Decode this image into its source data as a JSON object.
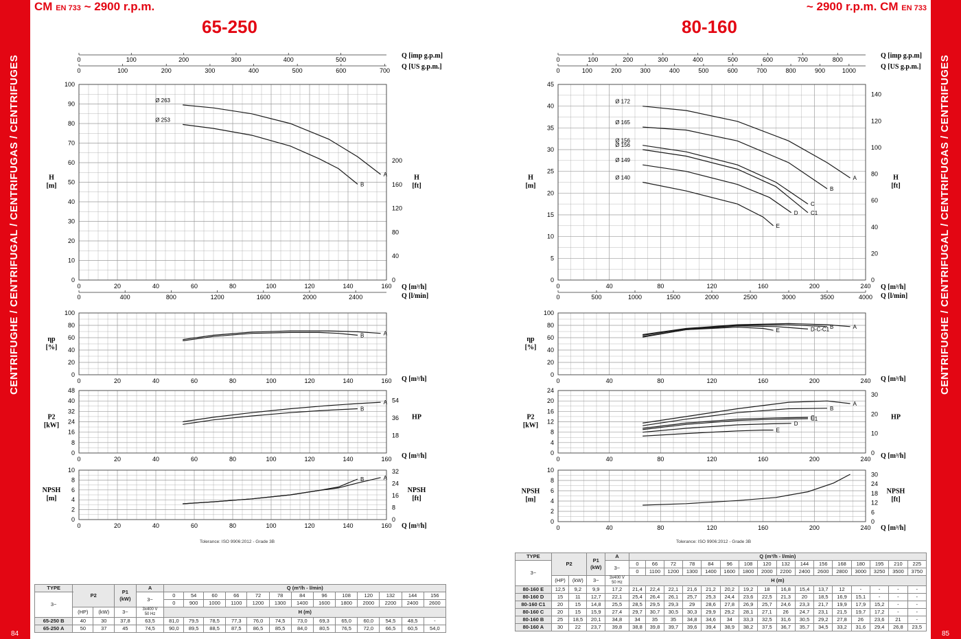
{
  "sidebar": {
    "left_text": "CENTRIFUGHE / CENTRIFUGAL / CENTRIFUGAS / CENTRIFUGES",
    "right_text": "CENTRIFUGHE / CENTRIFUGAL / CENTRIFUGAS / CENTRIFUGES",
    "left_page": "84",
    "right_page": "85"
  },
  "header": {
    "left_prefix": "CM",
    "left_std": "EN 733",
    "left_suffix": "~ 2900 r.p.m.",
    "right_prefix": "~ 2900 r.p.m. CM",
    "right_std": "EN 733"
  },
  "colors": {
    "accent": "#e30613",
    "grid": "#9a9a9a",
    "curve": "#1a1a1a"
  },
  "tolerance": "Tolerance: ISO 9906:2012 - Grade 3B",
  "chart_data": [
    {
      "type": "line",
      "title": "65-250",
      "x_label": "Q [m³/h]",
      "x_alt_label": "Q [l/min]",
      "top_label_1": "Q [imp g.p.m]",
      "top_label_2": "Q [US g.p.m.]",
      "xlim": [
        0,
        160
      ],
      "x_ticks": [
        0,
        20,
        40,
        60,
        80,
        100,
        120,
        140,
        160
      ],
      "x_alt_ticks": [
        0,
        400,
        800,
        1200,
        1600,
        2000,
        2400
      ],
      "x_alt_max": 2666.7,
      "imp_ticks": [
        0,
        100,
        200,
        300,
        400,
        500
      ],
      "imp_max": 587,
      "us_ticks": [
        0,
        100,
        200,
        300,
        400,
        500,
        600,
        700
      ],
      "us_max": 704,
      "head": {
        "ylabel": "H\n[m]",
        "ylim": [
          0,
          100
        ],
        "y_ticks": [
          0,
          10,
          20,
          30,
          40,
          50,
          60,
          70,
          80,
          90,
          100
        ],
        "ft_label": "H\n[ft]",
        "ft_ticks": [
          0,
          40,
          80,
          120,
          160,
          200
        ],
        "ft_max": 328,
        "series": [
          {
            "name": "A",
            "diameter": "Ø 263",
            "x": [
              54,
              70,
              90,
              110,
              130,
              145,
              157
            ],
            "y": [
              89.5,
              88,
              85,
              80,
              72,
              63,
              54
            ]
          },
          {
            "name": "B",
            "diameter": "Ø 253",
            "x": [
              54,
              70,
              90,
              110,
              125,
              135,
              145
            ],
            "y": [
              79.5,
              77.5,
              74,
              68.5,
              62,
              57,
              49
            ]
          }
        ]
      },
      "efficiency": {
        "ylabel": "ηp\n[%]",
        "ylim": [
          0,
          100
        ],
        "y_ticks": [
          0,
          20,
          40,
          60,
          80,
          100
        ],
        "series": [
          {
            "name": "A",
            "x": [
              54,
              70,
              90,
              110,
              130,
              145,
              157
            ],
            "y": [
              57,
              64,
              69,
              71,
              71,
              69.5,
              67
            ]
          },
          {
            "name": "B",
            "x": [
              54,
              70,
              90,
              110,
              125,
              135,
              145
            ],
            "y": [
              55,
              62,
              67,
              68.5,
              68.5,
              67,
              64
            ]
          }
        ]
      },
      "power": {
        "ylabel": "P2\n[kW]",
        "ylim": [
          0,
          48
        ],
        "y_ticks": [
          0,
          8,
          16,
          24,
          32,
          40,
          48
        ],
        "hp_label": "HP",
        "hp_ticks": [
          18,
          36,
          54
        ],
        "hp_max": 64.4,
        "series": [
          {
            "name": "A",
            "x": [
              54,
              70,
              90,
              110,
              130,
              145,
              157
            ],
            "y": [
              24,
              27.5,
              31,
              34,
              36.5,
              38,
              39
            ]
          },
          {
            "name": "B",
            "x": [
              54,
              70,
              90,
              110,
              125,
              135,
              145
            ],
            "y": [
              22,
              25.5,
              28.5,
              31,
              32.5,
              33.3,
              34
            ]
          }
        ]
      },
      "npsh": {
        "ylabel": "NPSH\n[m]",
        "ylim": [
          0,
          10
        ],
        "y_ticks": [
          0,
          2,
          4,
          6,
          8,
          10
        ],
        "ft_label": "NPSH\n[ft]",
        "ft_ticks": [
          0,
          8,
          16,
          24,
          32
        ],
        "ft_max": 32.8,
        "series": [
          {
            "name": "A",
            "x": [
              54,
              70,
              90,
              110,
              125,
              135,
              145,
              157
            ],
            "y": [
              3.2,
              3.6,
              4.2,
              5.0,
              5.9,
              6.4,
              7.4,
              8.5
            ]
          },
          {
            "name": "B",
            "x": [
              54,
              70,
              90,
              110,
              125,
              135,
              145
            ],
            "y": [
              3.2,
              3.6,
              4.2,
              5.0,
              5.9,
              6.6,
              8.2
            ]
          }
        ]
      }
    },
    {
      "type": "line",
      "title": "80-160",
      "x_label": "Q [m³/h]",
      "x_alt_label": "Q [l/min]",
      "top_label_1": "Q [imp g.p.m]",
      "top_label_2": "Q [US g.p.m.]",
      "xlim": [
        0,
        240
      ],
      "x_ticks": [
        0,
        40,
        80,
        120,
        160,
        200,
        240
      ],
      "x_alt_ticks": [
        0,
        500,
        1000,
        1500,
        2000,
        2500,
        3000,
        3500,
        4000
      ],
      "x_alt_max": 4000,
      "imp_ticks": [
        0,
        100,
        200,
        300,
        400,
        500,
        600,
        700,
        800
      ],
      "imp_max": 880,
      "us_ticks": [
        0,
        100,
        200,
        300,
        400,
        500,
        600,
        700,
        800,
        900,
        1000
      ],
      "us_max": 1057,
      "head": {
        "ylabel": "H\n[m]",
        "ylim": [
          0,
          45
        ],
        "y_ticks": [
          0,
          5,
          10,
          15,
          20,
          25,
          30,
          35,
          40,
          45
        ],
        "ft_label": "H\n[ft]",
        "ft_ticks": [
          0,
          20,
          40,
          60,
          80,
          100,
          120,
          140
        ],
        "ft_max": 147.6,
        "series": [
          {
            "name": "A",
            "diameter": "Ø 172",
            "x": [
              66,
              100,
              140,
              180,
              210,
              228
            ],
            "y": [
              40,
              39,
              36.5,
              32,
              27,
              23.5
            ]
          },
          {
            "name": "B",
            "diameter": "Ø 165",
            "x": [
              66,
              100,
              140,
              180,
              210
            ],
            "y": [
              35.2,
              34.5,
              32,
              27,
              21
            ]
          },
          {
            "name": "C",
            "diameter": "Ø 156",
            "x": [
              66,
              100,
              140,
              170,
              195
            ],
            "y": [
              31,
              29.5,
              26.5,
              22.5,
              17.5
            ]
          },
          {
            "name": "C1",
            "diameter": "Ø 156",
            "x": [
              66,
              100,
              140,
              170,
              195
            ],
            "y": [
              30,
              28.5,
              25.5,
              21.5,
              15.5
            ]
          },
          {
            "name": "D",
            "diameter": "Ø 149",
            "x": [
              66,
              100,
              140,
              165,
              182
            ],
            "y": [
              26.5,
              25,
              22,
              19,
              15.5
            ]
          },
          {
            "name": "E",
            "diameter": "Ø 140",
            "x": [
              66,
              100,
              140,
              160,
              168
            ],
            "y": [
              22.5,
              20.5,
              17.5,
              14.5,
              12.5
            ]
          }
        ]
      },
      "efficiency": {
        "ylabel": "ηp\n[%]",
        "ylim": [
          0,
          100
        ],
        "y_ticks": [
          0,
          20,
          40,
          60,
          80,
          100
        ],
        "series": [
          {
            "name": "A",
            "x": [
              66,
              100,
              140,
              180,
              210,
              228
            ],
            "y": [
              65,
              75,
              81,
              83,
              81,
              78
            ]
          },
          {
            "name": "B",
            "x": [
              66,
              100,
              140,
              180,
              210
            ],
            "y": [
              64,
              74,
              80,
              81,
              78
            ]
          },
          {
            "name": "D-C-C1",
            "x": [
              66,
              100,
              140,
              170,
              195
            ],
            "y": [
              62,
              73,
              79,
              78,
              74
            ]
          },
          {
            "name": "E",
            "x": [
              66,
              100,
              140,
              160,
              168
            ],
            "y": [
              61,
              73,
              77,
              75,
              72
            ]
          }
        ]
      },
      "power": {
        "ylabel": "P2\n[kW]",
        "ylim": [
          0,
          24
        ],
        "y_ticks": [
          0,
          4,
          8,
          12,
          16,
          20,
          24
        ],
        "hp_label": "HP",
        "hp_ticks": [
          0,
          10,
          20,
          30
        ],
        "hp_max": 32.2,
        "series": [
          {
            "name": "A",
            "x": [
              66,
              100,
              140,
              180,
              210,
              228
            ],
            "y": [
              11.5,
              14,
              17,
              19.5,
              20,
              19
            ]
          },
          {
            "name": "B",
            "x": [
              66,
              100,
              140,
              180,
              210
            ],
            "y": [
              10.5,
              13,
              15.5,
              17,
              17.2
            ]
          },
          {
            "name": "C",
            "x": [
              66,
              100,
              140,
              170,
              195
            ],
            "y": [
              9.5,
              11.5,
              13,
              13.5,
              13.7
            ]
          },
          {
            "name": "C1",
            "x": [
              66,
              100,
              140,
              170,
              195
            ],
            "y": [
              9,
              11,
              12.5,
              13,
              13.2
            ]
          },
          {
            "name": "D",
            "x": [
              66,
              100,
              140,
              165,
              182
            ],
            "y": [
              8,
              9.5,
              10.8,
              11.2,
              11.4
            ]
          },
          {
            "name": "E",
            "x": [
              66,
              100,
              140,
              160,
              168
            ],
            "y": [
              6.5,
              7.5,
              8.5,
              8.8,
              8.8
            ]
          }
        ]
      },
      "npsh": {
        "ylabel": "NPSH\n[m]",
        "ylim": [
          0,
          10
        ],
        "y_ticks": [
          0,
          2,
          4,
          6,
          8,
          10
        ],
        "ft_label": "NPSH\n[ft]",
        "ft_ticks": [
          0,
          6,
          12,
          18,
          24,
          30
        ],
        "ft_max": 32.8,
        "series": [
          {
            "name": "",
            "x": [
              66,
              100,
              140,
              170,
              195,
              215,
              228
            ],
            "y": [
              3.2,
              3.5,
              4.1,
              4.7,
              5.8,
              7.5,
              9.2
            ]
          }
        ]
      }
    }
  ],
  "tables": {
    "left": {
      "type_label": "TYPE",
      "phase": "3~",
      "p2_label": "P2",
      "p1_label": "P1\n(kW)",
      "a_label": "A",
      "q_label": "Q (m³/h - l/min)",
      "hp_label": "(HP)",
      "kw_label": "(kW)",
      "a_phase": "3~",
      "voltage": "3x400 V\n50 Hz",
      "h_label": "H (m)",
      "q_m3h": [
        "0",
        "54",
        "60",
        "66",
        "72",
        "78",
        "84",
        "96",
        "108",
        "120",
        "132",
        "144",
        "156"
      ],
      "q_lmin": [
        "0",
        "900",
        "1000",
        "1100",
        "1200",
        "1300",
        "1400",
        "1600",
        "1800",
        "2000",
        "2200",
        "2400",
        "2600"
      ],
      "rows": [
        {
          "type": "65-250 B",
          "hp": "40",
          "kw": "30",
          "p1": "37,8",
          "a": "63,5",
          "h": [
            "81,0",
            "79,5",
            "78,5",
            "77,3",
            "76,0",
            "74,5",
            "73,0",
            "69,3",
            "65,0",
            "60,0",
            "54,5",
            "48,5",
            "-"
          ]
        },
        {
          "type": "65-250 A",
          "hp": "50",
          "kw": "37",
          "p1": "45",
          "a": "74,5",
          "h": [
            "90,0",
            "89,5",
            "88,5",
            "87,5",
            "86,5",
            "85,5",
            "84,0",
            "80,5",
            "76,5",
            "72,0",
            "66,5",
            "60,5",
            "54,0"
          ]
        }
      ]
    },
    "right": {
      "type_label": "TYPE",
      "phase": "3~",
      "p2_label": "P2",
      "p1_label": "P1\n(kW)",
      "a_label": "A",
      "q_label": "Q (m³/h - l/min)",
      "hp_label": "(HP)",
      "kw_label": "(kW)",
      "a_phase": "3~",
      "voltage": "3x400 V\n50 Hz",
      "h_label": "H (m)",
      "q_m3h": [
        "0",
        "66",
        "72",
        "78",
        "84",
        "96",
        "108",
        "120",
        "132",
        "144",
        "156",
        "168",
        "180",
        "195",
        "210",
        "225"
      ],
      "q_lmin": [
        "0",
        "1100",
        "1200",
        "1300",
        "1400",
        "1600",
        "1800",
        "2000",
        "2200",
        "2400",
        "2600",
        "2800",
        "3000",
        "3250",
        "3500",
        "3750"
      ],
      "rows": [
        {
          "type": "80-160 E",
          "hp": "12,5",
          "kw": "9,2",
          "p1": "9,9",
          "a": "17,2",
          "h": [
            "21,4",
            "22,4",
            "22,1",
            "21,6",
            "21,2",
            "20,2",
            "19,2",
            "18",
            "16,8",
            "15,4",
            "13,7",
            "12",
            "-",
            "-",
            "-",
            "-"
          ]
        },
        {
          "type": "80-160 D",
          "hp": "15",
          "kw": "11",
          "p1": "12,7",
          "a": "22,1",
          "h": [
            "25,4",
            "26,4",
            "26,1",
            "25,7",
            "25,3",
            "24,4",
            "23,6",
            "22,5",
            "21,3",
            "20",
            "18,5",
            "16,9",
            "15,1",
            "-",
            "-",
            "-"
          ]
        },
        {
          "type": "80-160 C1",
          "hp": "20",
          "kw": "15",
          "p1": "14,8",
          "a": "25,5",
          "h": [
            "28,5",
            "29,5",
            "29,3",
            "29",
            "28,6",
            "27,8",
            "26,9",
            "25,7",
            "24,6",
            "23,3",
            "21,7",
            "19,9",
            "17,9",
            "15,2",
            "-",
            "-"
          ]
        },
        {
          "type": "80-160 C",
          "hp": "20",
          "kw": "15",
          "p1": "15,9",
          "a": "27,4",
          "h": [
            "29,7",
            "30,7",
            "30,5",
            "30,3",
            "29,9",
            "29,2",
            "28,1",
            "27,1",
            "26",
            "24,7",
            "23,1",
            "21,5",
            "19,7",
            "17,2",
            "-",
            "-"
          ]
        },
        {
          "type": "80-160 B",
          "hp": "25",
          "kw": "18,5",
          "p1": "20,1",
          "a": "34,8",
          "h": [
            "34",
            "35",
            "35",
            "34,8",
            "34,6",
            "34",
            "33,3",
            "32,5",
            "31,6",
            "30,5",
            "29,2",
            "27,8",
            "26",
            "23,6",
            "21",
            "-"
          ]
        },
        {
          "type": "80-160 A",
          "hp": "30",
          "kw": "22",
          "p1": "23,7",
          "a": "39,8",
          "h": [
            "38,8",
            "39,8",
            "39,7",
            "39,6",
            "39,4",
            "38,9",
            "38,2",
            "37,5",
            "36,7",
            "35,7",
            "34,5",
            "33,2",
            "31,6",
            "29,4",
            "26,8",
            "23,5"
          ]
        }
      ]
    }
  }
}
